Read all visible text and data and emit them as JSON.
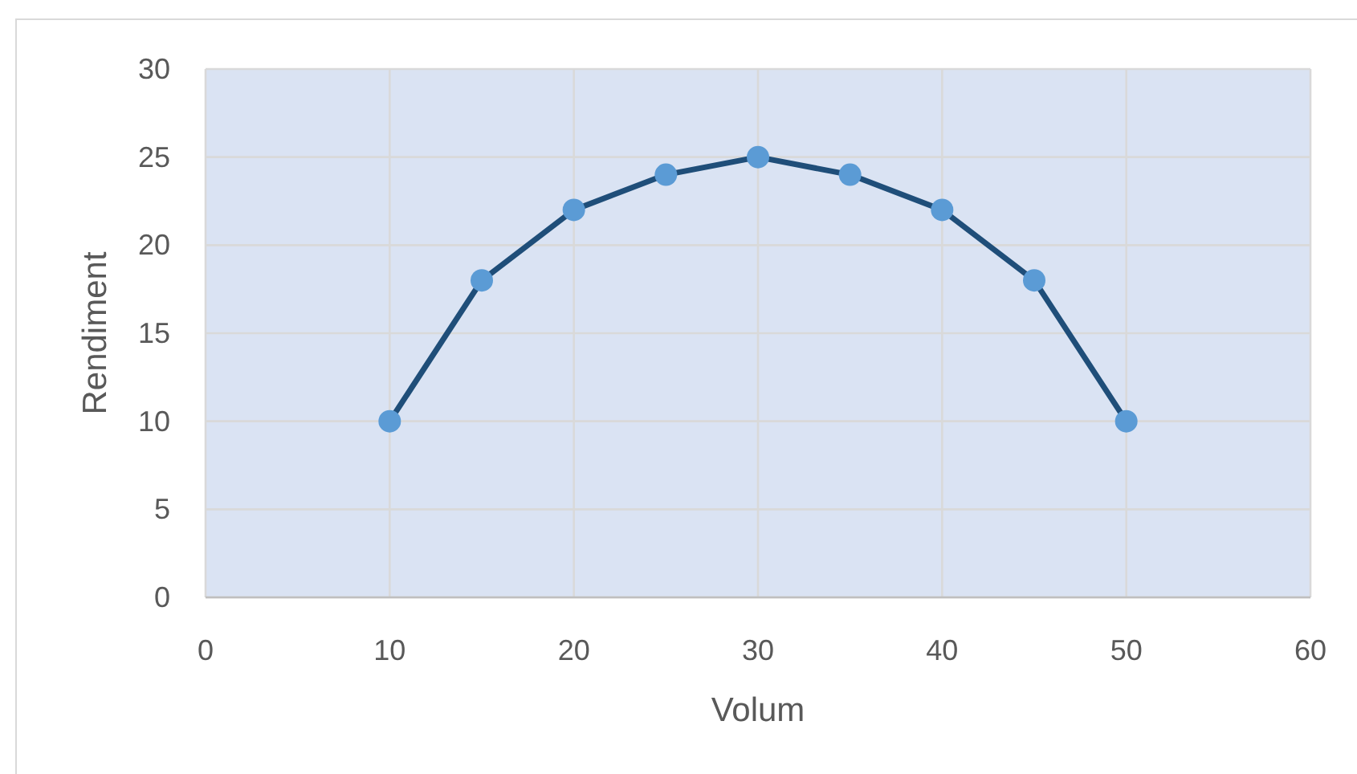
{
  "chart_data": {
    "type": "line",
    "xlabel": "Volum",
    "ylabel": "Rendiment",
    "x": [
      10,
      15,
      20,
      25,
      30,
      35,
      40,
      45,
      50
    ],
    "series": [
      {
        "color": "#1f4e79",
        "values": [
          10,
          18,
          22,
          24,
          25,
          24,
          22,
          18,
          10
        ]
      }
    ],
    "xlim": [
      0,
      60
    ],
    "xticks": [
      0,
      10,
      20,
      30,
      40,
      50,
      60
    ],
    "ylim": [
      0,
      30
    ],
    "yticks": [
      0,
      5,
      10,
      15,
      20,
      25,
      30
    ],
    "grid": true,
    "marker": "circle",
    "line_style": "solid"
  }
}
